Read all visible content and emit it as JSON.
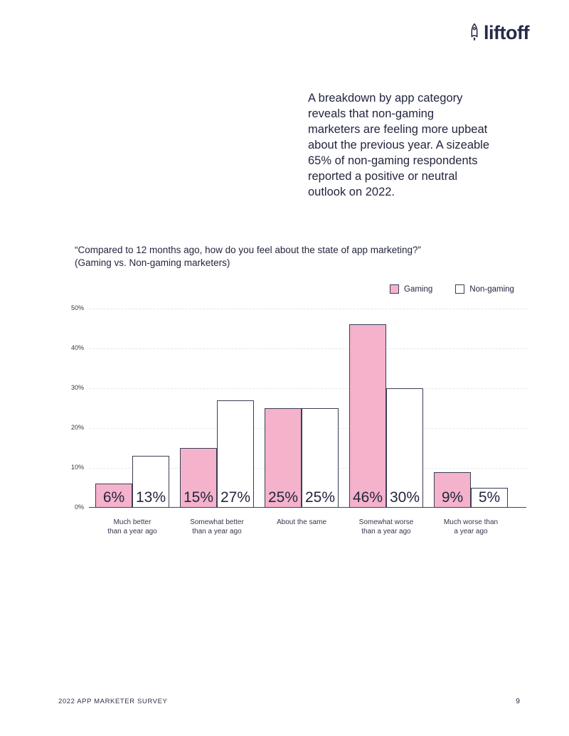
{
  "logo": {
    "brand": "liftoff",
    "icon": "rocket"
  },
  "intro": {
    "text": "A breakdown by app category\nreveals that non-gaming\nmarketers are feeling more upbeat\nabout the previous year. A sizeable\n65% of non-gaming respondents\nreported a positive or neutral\noutlook on 2022."
  },
  "chart": {
    "title": "“Compared to 12 months ago, how do you feel about the state of app marketing?”\n(Gaming vs. Non-gaming marketers)"
  },
  "chart_data": {
    "type": "bar",
    "title": "Compared to 12 months ago, how do you feel about the state of app marketing? (Gaming vs. Non-gaming marketers)",
    "categories": [
      "Much better\nthan a year ago",
      "Somewhat better\nthan a year ago",
      "About the same",
      "Somewhat worse\nthan a year ago",
      "Much worse than\na year ago"
    ],
    "series": [
      {
        "name": "Gaming",
        "color": "#f5b2cb",
        "values": [
          6,
          15,
          25,
          46,
          9
        ]
      },
      {
        "name": "Non-gaming",
        "color": "#ffffff",
        "values": [
          13,
          27,
          25,
          30,
          5
        ]
      }
    ],
    "value_label_suffix": "%",
    "y_ticks": [
      "0%",
      "10%",
      "20%",
      "30%",
      "40%",
      "50%"
    ],
    "ylim": [
      0,
      50
    ],
    "grid": "horizontal-dashed",
    "legend_position": "top-right",
    "bar_border_color": "#3a3d55"
  },
  "colors": {
    "text": "#23263f",
    "pink": "#f5b2cb",
    "gridline": "#e6e6ec",
    "axis": "#41445a"
  },
  "footer": {
    "left": "2022 APP MARKETER SURVEY",
    "page": "9"
  }
}
